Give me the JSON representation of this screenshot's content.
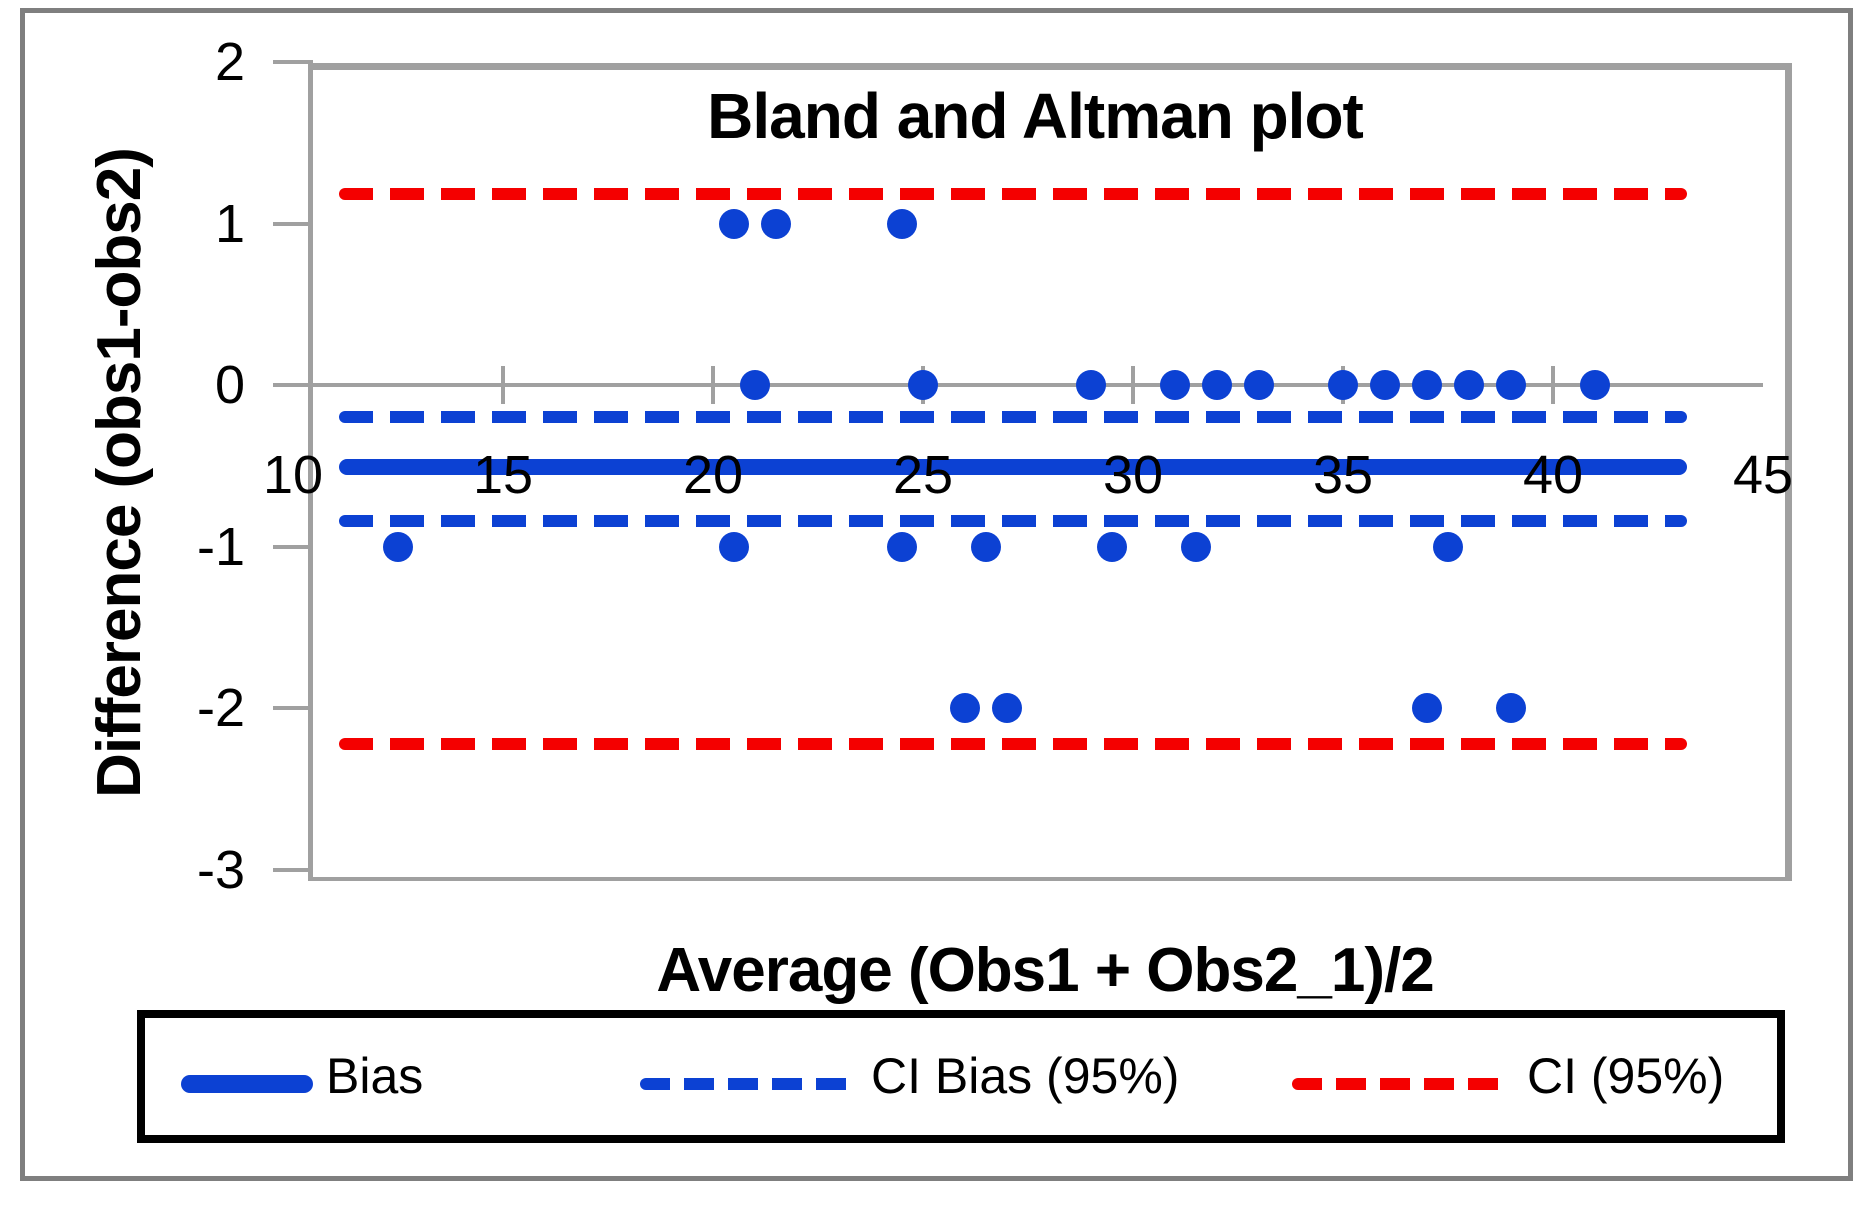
{
  "figure": {
    "title": "Bland and Altman plot",
    "x_axis_title": "Average (Obs1 + Obs2_1)/2",
    "y_axis_title": "Difference (obs1-obs2)"
  },
  "chart_data": {
    "type": "scatter",
    "title": "Bland and Altman plot",
    "xlabel": "Average (Obs1 + Obs2_1)/2",
    "ylabel": "Difference (obs1-obs2)",
    "xlim": [
      10,
      45
    ],
    "ylim": [
      -3,
      2
    ],
    "x_ticks": [
      10,
      15,
      20,
      25,
      30,
      35,
      40,
      45
    ],
    "y_ticks": [
      2,
      1,
      0,
      -1,
      -2,
      -3
    ],
    "grid": false,
    "legend_position": "bottom",
    "points": [
      {
        "x": 20.5,
        "y": 1
      },
      {
        "x": 21.5,
        "y": 1
      },
      {
        "x": 24.5,
        "y": 1
      },
      {
        "x": 21,
        "y": 0
      },
      {
        "x": 25,
        "y": 0
      },
      {
        "x": 29,
        "y": 0
      },
      {
        "x": 31,
        "y": 0
      },
      {
        "x": 32,
        "y": 0
      },
      {
        "x": 33,
        "y": 0
      },
      {
        "x": 35,
        "y": 0
      },
      {
        "x": 36,
        "y": 0
      },
      {
        "x": 37,
        "y": 0
      },
      {
        "x": 38,
        "y": 0
      },
      {
        "x": 39,
        "y": 0
      },
      {
        "x": 41,
        "y": 0
      },
      {
        "x": 12.5,
        "y": -1
      },
      {
        "x": 20.5,
        "y": -1
      },
      {
        "x": 24.5,
        "y": -1
      },
      {
        "x": 26.5,
        "y": -1
      },
      {
        "x": 29.5,
        "y": -1
      },
      {
        "x": 31.5,
        "y": -1
      },
      {
        "x": 37.5,
        "y": -1
      },
      {
        "x": 26,
        "y": -2
      },
      {
        "x": 27,
        "y": -2
      },
      {
        "x": 37,
        "y": -2
      },
      {
        "x": 39,
        "y": -2
      }
    ],
    "lines": [
      {
        "id": "bias-line",
        "label": "Bias",
        "y": -0.51,
        "style": "solid",
        "color": "#0c41d3",
        "thickness": 16
      },
      {
        "id": "ci-bias-upper-line",
        "label": "CI Bias (95%)",
        "y": -0.2,
        "style": "dashed",
        "color": "#0c41d3",
        "thickness": 12
      },
      {
        "id": "ci-bias-lower-line",
        "label": "CI Bias (95%)",
        "y": -0.84,
        "style": "dashed",
        "color": "#0c41d3",
        "thickness": 12
      },
      {
        "id": "ci-upper-line",
        "label": "CI (95%)",
        "y": 1.18,
        "style": "dashed",
        "color": "#f40000",
        "thickness": 12
      },
      {
        "id": "ci-lower-line",
        "label": "CI (95%)",
        "y": -2.22,
        "style": "dashed",
        "color": "#f40000",
        "thickness": 12
      }
    ],
    "line_span_x": [
      11.1,
      43.2
    ],
    "point_color": "#0c41d3"
  },
  "legend": {
    "items": [
      {
        "label": "Bias",
        "style": "solid",
        "color": "#0c41d3"
      },
      {
        "label": "CI Bias (95%)",
        "style": "dashed",
        "color": "#0c41d3"
      },
      {
        "label": "CI (95%)",
        "style": "dashed",
        "color": "#f40000"
      }
    ]
  },
  "colors": {
    "points": "#0c41d3",
    "bias_line": "#0c41d3",
    "ci_bias_line": "#0c41d3",
    "ci_line": "#f40000",
    "axis": "#a0a0a0",
    "figure_border": "#7f7f7f",
    "legend_border": "#000000",
    "text": "#000000"
  }
}
